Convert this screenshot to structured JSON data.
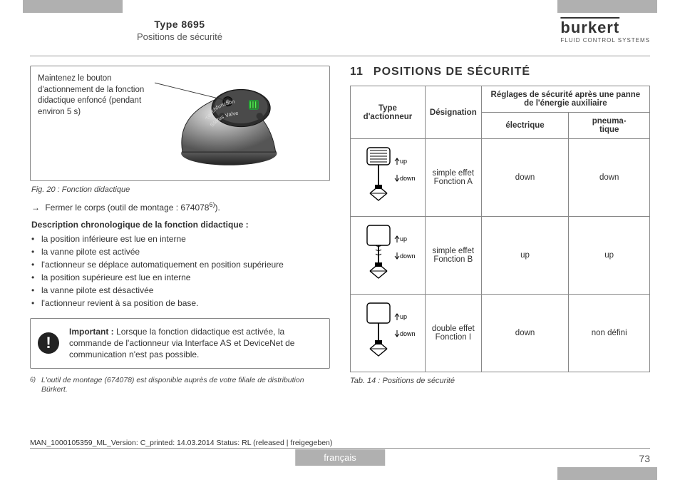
{
  "header": {
    "type_label": "Type 8695",
    "subtitle": "Positions de sécurité",
    "logo_word": "burkert",
    "logo_tag": "FLUID CONTROL SYSTEMS"
  },
  "figure": {
    "callout": "Maintenez le bouton d'actionnement de la fonction didactique enfoncé (pendant environ 5 s)",
    "caption": "Fig. 20 :   Fonction didactique",
    "device_labels": {
      "teach": "Teachfunction",
      "status": "Status Valve"
    }
  },
  "arrow_line": {
    "prefix": "→",
    "text_a": "Fermer le corps (outil de montage : 674078",
    "sup": "6)",
    "text_b": ")."
  },
  "desc_heading": "Description chronologique de la fonction didactique :",
  "bullets": [
    "la position inférieure est lue en interne",
    "la vanne pilote est activée",
    "l'actionneur se déplace automatiquement en position supérieure",
    "la position supérieure est lue en interne",
    "la vanne pilote est désactivée",
    "l'actionneur revient à sa position de base."
  ],
  "important": {
    "label": "Important :",
    "text": "Lorsque la fonction didactique est activée, la commande de l'actionneur via Interface AS et DeviceNet de communication n'est pas possible."
  },
  "footnote": {
    "num": "6)",
    "text": "L'outil de montage (674078) est disponible auprès de votre filiale de distribution Bürkert."
  },
  "section": {
    "num": "11",
    "title": "POSITIONS DE SÉCURITÉ"
  },
  "table": {
    "headers": {
      "actuator": "Type d'actionneur",
      "designation": "Désignation",
      "settings_group": "Réglages de sécurité après une panne de l'énergie auxiliaire",
      "electric": "électrique",
      "pneumatic": "pneuma-\ntique"
    },
    "updown": {
      "up": "up",
      "down": "down"
    },
    "rows": [
      {
        "variant": "A",
        "designation_l1": "simple effet",
        "designation_l2": "Fonction A",
        "electric": "down",
        "pneumatic": "down"
      },
      {
        "variant": "B",
        "designation_l1": "simple effet",
        "designation_l2": "Fonction B",
        "electric": "up",
        "pneumatic": "up"
      },
      {
        "variant": "I",
        "designation_l1": "double effet",
        "designation_l2": "Fonction I",
        "electric": "down",
        "pneumatic": "non défini"
      }
    ],
    "caption": "Tab. 14 :  Positions de sécurité"
  },
  "meta": "MAN_1000105359_ML_Version: C_printed: 14.03.2014 Status: RL (released | freigegeben)",
  "language_tab": "français",
  "page_number": "73",
  "colors": {
    "gray_tab": "#b0b0b0",
    "border": "#888888",
    "text": "#333333"
  }
}
